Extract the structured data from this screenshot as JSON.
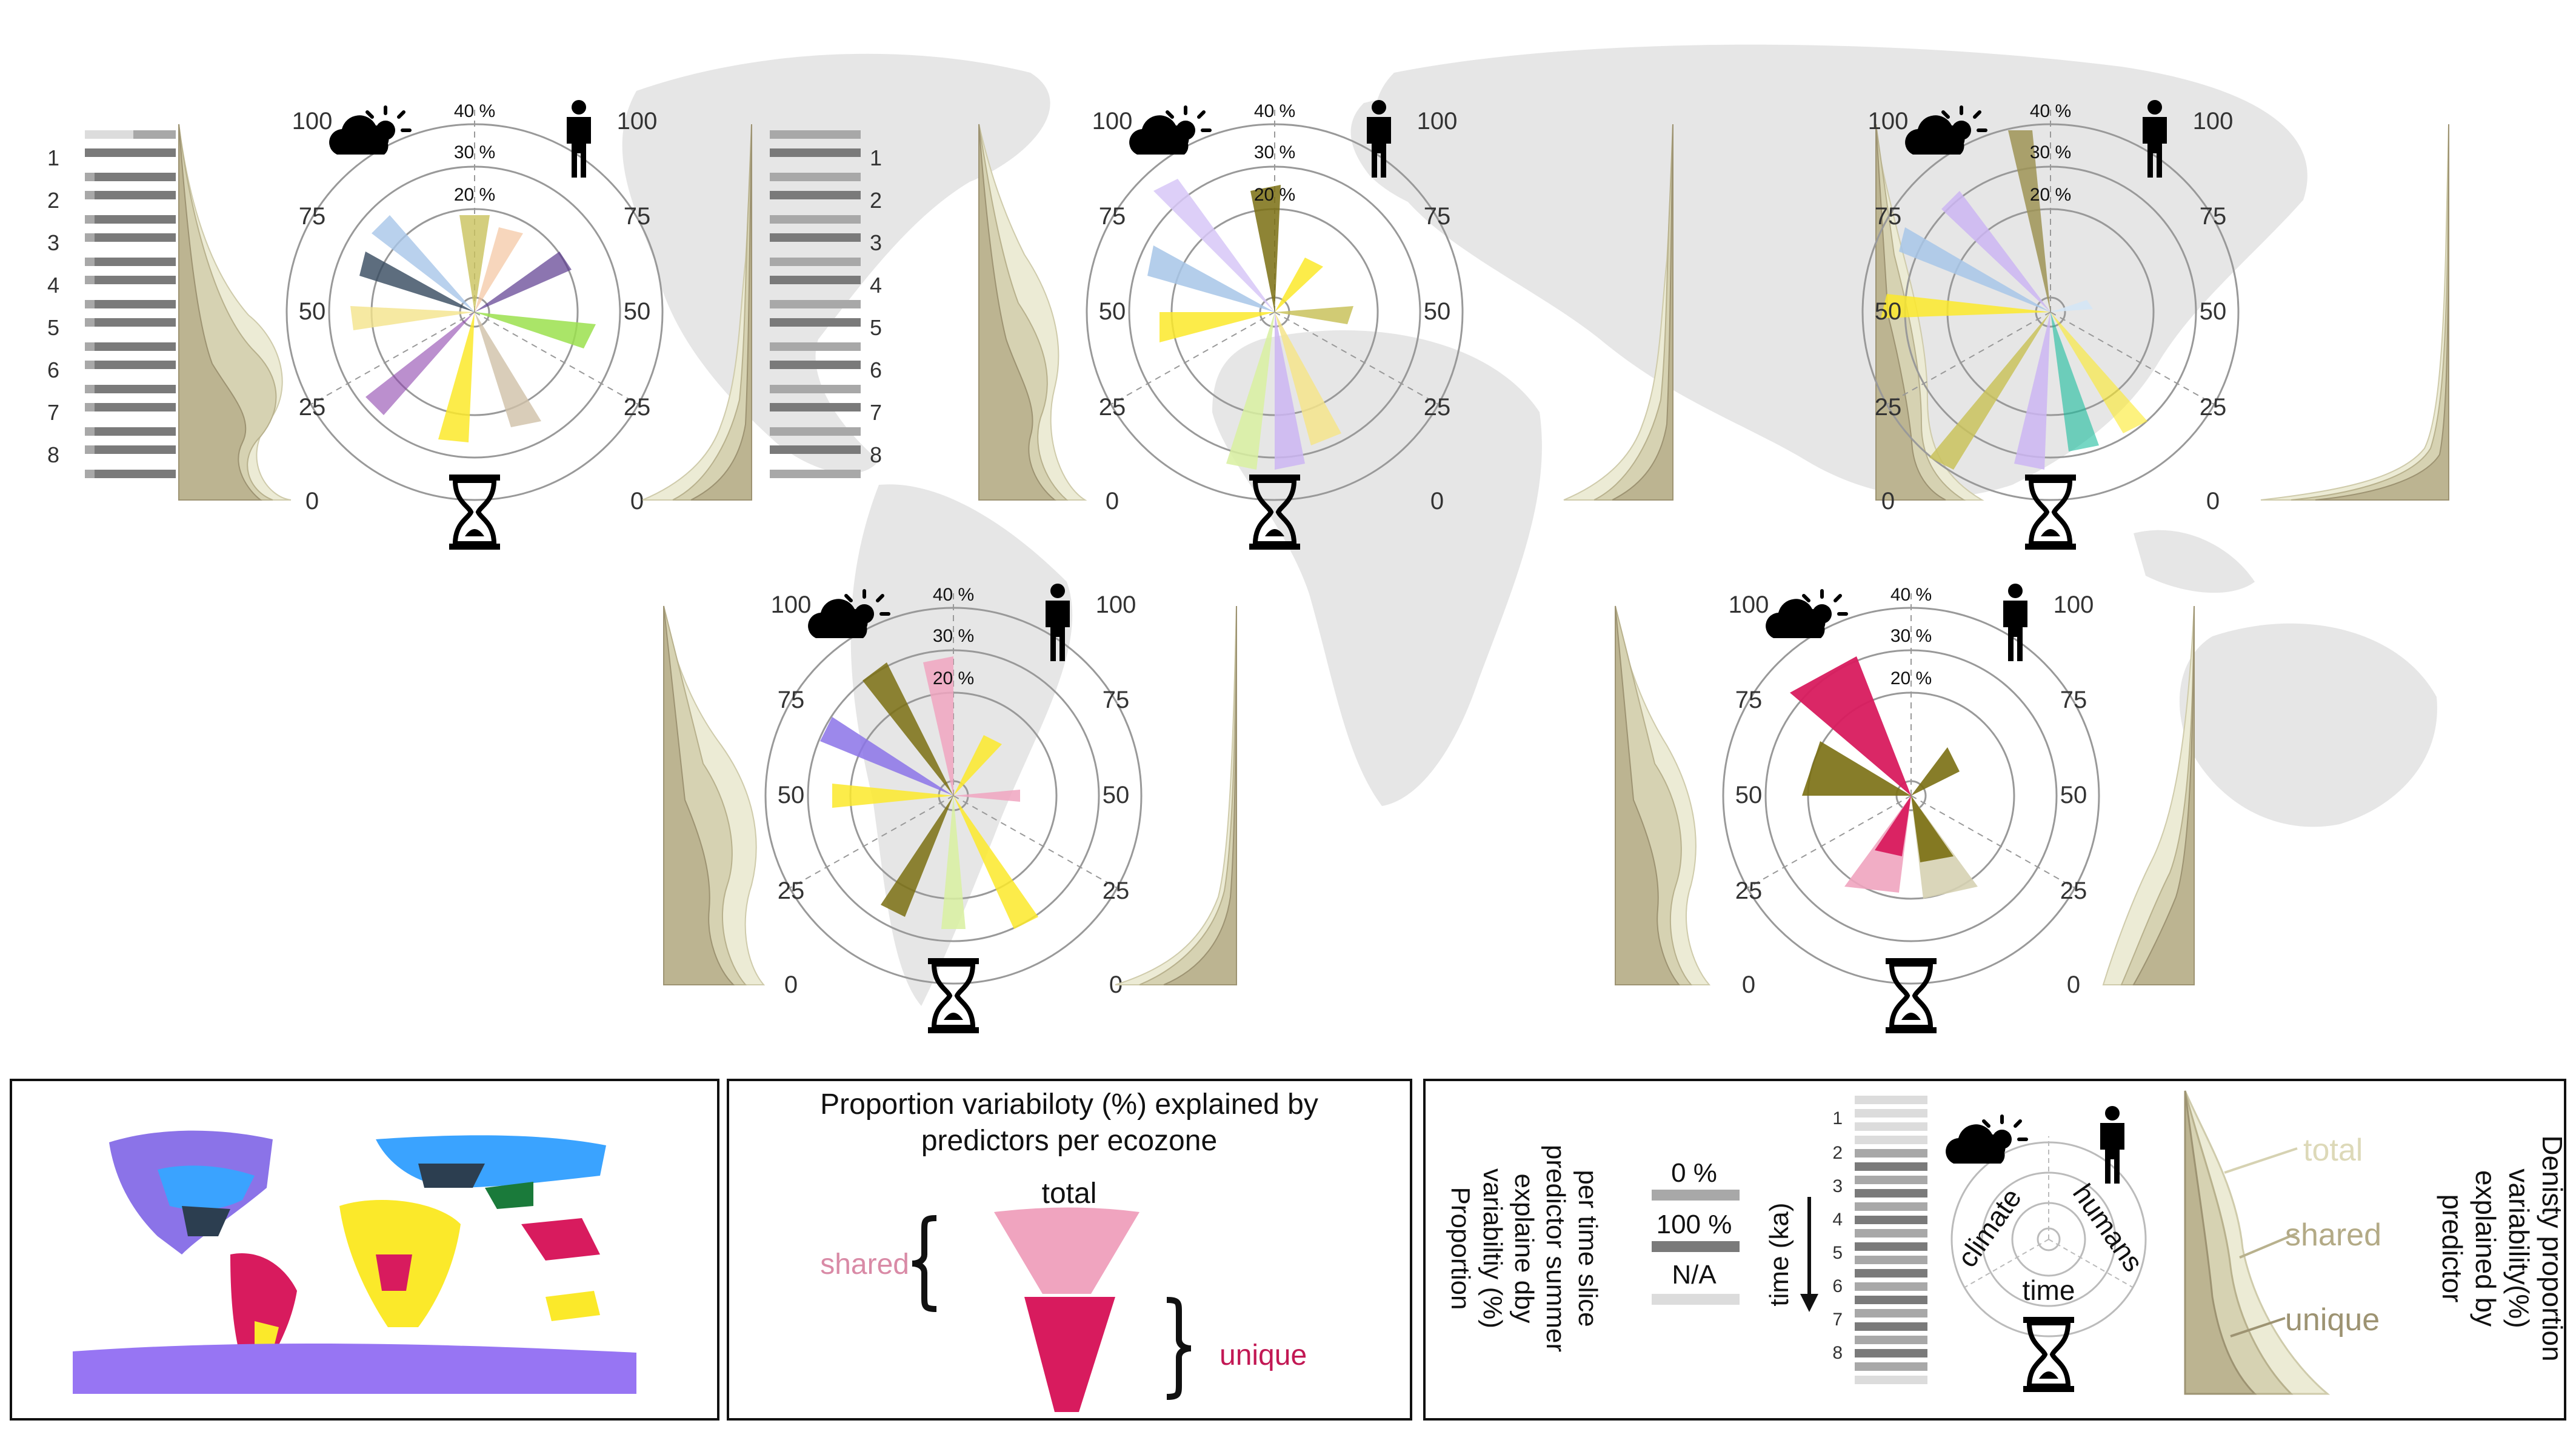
{
  "scale_labels": {
    "max": "100",
    "q3": "75",
    "mid": "50",
    "q1": "25",
    "zero": "0"
  },
  "radial_labels": {
    "r40": "40 %",
    "r30": "30 %",
    "r20": "20 %"
  },
  "time_slices": [
    "1",
    "2",
    "3",
    "4",
    "5",
    "6",
    "7",
    "8"
  ],
  "colors": {
    "density_total": "#ecebd5",
    "density_shared": "#d6d2b2",
    "density_unique": "#b3aa86",
    "bar_dark": "#7a7a7a",
    "bar_mid": "#a8a8a8",
    "bar_light": "#dcdcdc",
    "pink_shared": "#f0a4bf",
    "red_unique": "#d81b5e",
    "map_grey": "#e6e6e6",
    "antarctica": "#9775f3"
  },
  "icons": [
    "sun-cloud-icon",
    "person-icon",
    "hourglass-icon"
  ],
  "legend_middle": {
    "title_line1": "Proportion variabiloty (%) explained by",
    "title_line2": "predictors per ecozone",
    "total": "total",
    "shared": "shared",
    "unique": "unique"
  },
  "legend_right": {
    "bars_label_line1": "Proportion",
    "bars_label_line2": "variabiltiy (%)",
    "bars_label_line3": "explaine dby",
    "bars_label_line4": "predictor summer",
    "bars_label_line5": "per time slice",
    "key_0": "0 %",
    "key_100": "100 %",
    "key_na": "N/A",
    "time_axis": "time (ka)",
    "climate": "climate",
    "humans": "humans",
    "time": "time",
    "total": "total",
    "shared": "shared",
    "unique": "unique",
    "density_line1": "Denisty proportion",
    "density_line2": "variability(%)",
    "density_line3": "explained by",
    "density_line4": "predictor"
  }
}
